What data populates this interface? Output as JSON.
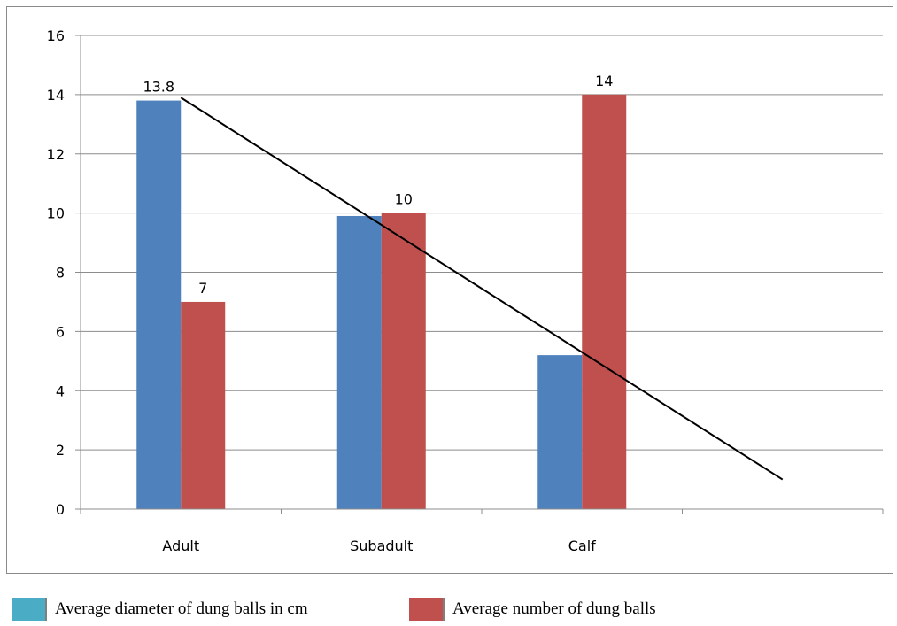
{
  "chart_data": {
    "type": "bar",
    "categories": [
      "Adult",
      "Subadult",
      "Calf",
      ""
    ],
    "series": [
      {
        "name": "Average diameter of dung balls in cm",
        "values": [
          13.8,
          9.9,
          5.2,
          null
        ],
        "color": "#4f81bd",
        "data_labels": [
          "13.8",
          "",
          "",
          ""
        ]
      },
      {
        "name": "Average number of dung balls",
        "values": [
          7,
          10,
          14,
          null
        ],
        "color": "#c0504d",
        "data_labels": [
          "7",
          "10",
          "14",
          ""
        ]
      }
    ],
    "yticks": [
      "0",
      "2",
      "4",
      "6",
      "8",
      "10",
      "12",
      "14",
      "16"
    ],
    "ylim": [
      0,
      16
    ],
    "grid": true,
    "trend_line": {
      "x": [
        0.0,
        3.0
      ],
      "y": [
        13.9,
        1.0
      ]
    },
    "legend_position": "bottom-left",
    "legend_colors": [
      "#4bacc6",
      "#c0504d"
    ],
    "title": "",
    "xlabel": "",
    "ylabel": ""
  }
}
